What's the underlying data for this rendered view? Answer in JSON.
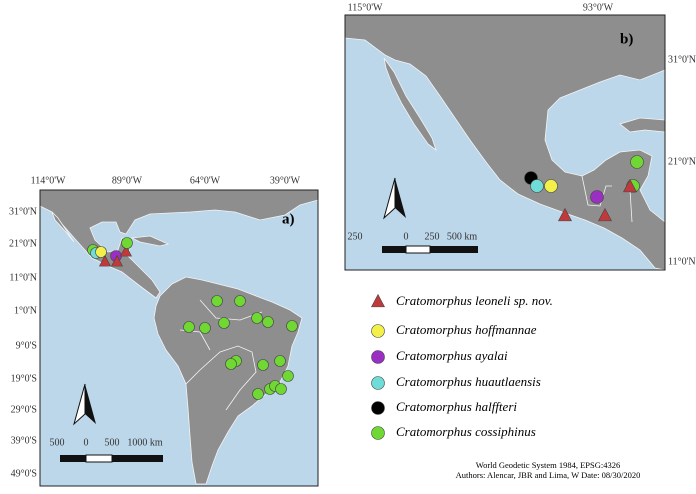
{
  "panel_a": {
    "label": "a)",
    "lon_labels": [
      "114°0'W",
      "89°0'W",
      "64°0'W",
      "39°0'W"
    ],
    "lat_labels": [
      "31°0'N",
      "21°0'N",
      "11°0'N",
      "1°0'N",
      "9°0'S",
      "19°0'S",
      "29°0'S",
      "39°0'S",
      "49°0'S"
    ],
    "scale_labels": [
      "500",
      "0",
      "500",
      "1000 km"
    ]
  },
  "panel_b": {
    "label": "b)",
    "lon_labels": [
      "115°0'W",
      "93°0'W"
    ],
    "lat_labels": [
      "31°0'N",
      "21°0'N",
      "11°0'N"
    ],
    "scale_labels": [
      "250",
      "0",
      "250",
      "500 km"
    ]
  },
  "legend": [
    {
      "name": "Cratomorphus leoneli sp. nov.",
      "marker": "triangle",
      "color": "#c0393b"
    },
    {
      "name": "Cratomorphus hoffmannae",
      "marker": "circle",
      "color": "#f4f04a"
    },
    {
      "name": "Cratomorphus ayalai",
      "marker": "circle",
      "color": "#9b2fc4"
    },
    {
      "name": "Cratomorphus huautlaensis",
      "marker": "circle",
      "color": "#6fdcd8"
    },
    {
      "name": "Cratomorphus halffteri",
      "marker": "circle",
      "color": "#000000"
    },
    {
      "name": "Cratomorphus cossiphinus",
      "marker": "circle",
      "color": "#6fd832"
    }
  ],
  "credits": [
    "World Geodetic System 1984, EPSG:4326",
    "Authors: Alencar, JBR and Lima, W Date: 08/30/2020"
  ]
}
